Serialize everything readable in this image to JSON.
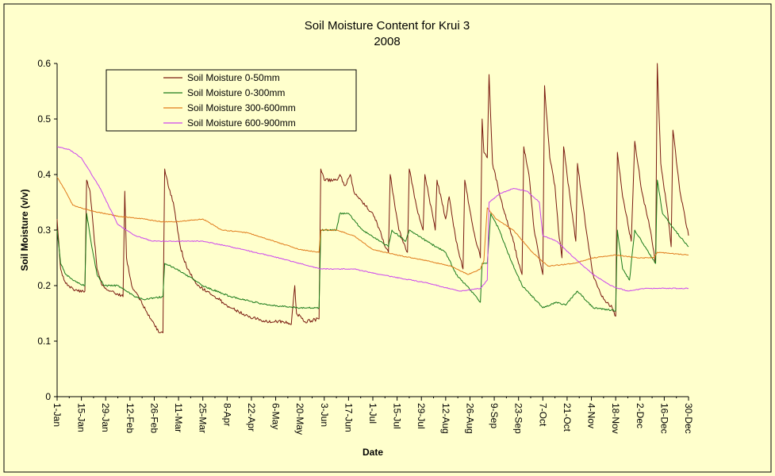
{
  "chart_data": {
    "type": "line",
    "title": "Soil Moisture Content for Krui 3",
    "subtitle": "2008",
    "xlabel": "Date",
    "ylabel": "Soil Moisture (v/v)",
    "ylim": [
      0,
      0.6
    ],
    "yticks": [
      "0",
      "0.1",
      "0.2",
      "0.3",
      "0.4",
      "0.5",
      "0.6"
    ],
    "xticks": [
      "1-Jan",
      "15-Jan",
      "29-Jan",
      "12-Feb",
      "26-Feb",
      "11-Mar",
      "25-Mar",
      "8-Apr",
      "22-Apr",
      "6-May",
      "20-May",
      "3-Jun",
      "17-Jun",
      "1-Jul",
      "15-Jul",
      "29-Jul",
      "12-Aug",
      "26-Aug",
      "9-Sep",
      "23-Sep",
      "7-Oct",
      "21-Oct",
      "4-Nov",
      "18-Nov",
      "2-Dec",
      "16-Dec",
      "30-Dec"
    ],
    "xlim": [
      "2008-01-01",
      "2008-12-30"
    ],
    "grid": false,
    "legend_position": "top-left",
    "colors": {
      "plot_background": "#ffffcc",
      "page_background": "#ffffcc"
    },
    "series": [
      {
        "name": "Soil Moisture 0-50mm",
        "color": "#7a1a10",
        "points": [
          [
            "2008-01-01",
            0.32
          ],
          [
            "2008-01-03",
            0.23
          ],
          [
            "2008-01-05",
            0.21
          ],
          [
            "2008-01-07",
            0.2
          ],
          [
            "2008-01-10",
            0.195
          ],
          [
            "2008-01-13",
            0.19
          ],
          [
            "2008-01-17",
            0.19
          ],
          [
            "2008-01-18",
            0.39
          ],
          [
            "2008-01-20",
            0.37
          ],
          [
            "2008-01-22",
            0.3
          ],
          [
            "2008-01-24",
            0.23
          ],
          [
            "2008-01-27",
            0.2
          ],
          [
            "2008-01-31",
            0.19
          ],
          [
            "2008-02-05",
            0.185
          ],
          [
            "2008-02-08",
            0.18
          ],
          [
            "2008-02-09",
            0.37
          ],
          [
            "2008-02-10",
            0.25
          ],
          [
            "2008-02-13",
            0.2
          ],
          [
            "2008-02-17",
            0.18
          ],
          [
            "2008-02-22",
            0.15
          ],
          [
            "2008-02-26",
            0.13
          ],
          [
            "2008-02-29",
            0.115
          ],
          [
            "2008-03-02",
            0.115
          ],
          [
            "2008-03-03",
            0.41
          ],
          [
            "2008-03-05",
            0.38
          ],
          [
            "2008-03-08",
            0.35
          ],
          [
            "2008-03-12",
            0.27
          ],
          [
            "2008-03-16",
            0.23
          ],
          [
            "2008-03-22",
            0.2
          ],
          [
            "2008-04-01",
            0.18
          ],
          [
            "2008-04-10",
            0.16
          ],
          [
            "2008-04-20",
            0.145
          ],
          [
            "2008-05-01",
            0.135
          ],
          [
            "2008-05-10",
            0.135
          ],
          [
            "2008-05-15",
            0.13
          ],
          [
            "2008-05-17",
            0.2
          ],
          [
            "2008-05-18",
            0.15
          ],
          [
            "2008-05-23",
            0.135
          ],
          [
            "2008-05-31",
            0.14
          ],
          [
            "2008-06-01",
            0.41
          ],
          [
            "2008-06-03",
            0.39
          ],
          [
            "2008-06-10",
            0.39
          ],
          [
            "2008-06-12",
            0.4
          ],
          [
            "2008-06-15",
            0.38
          ],
          [
            "2008-06-18",
            0.4
          ],
          [
            "2008-06-20",
            0.37
          ],
          [
            "2008-06-25",
            0.35
          ],
          [
            "2008-07-01",
            0.33
          ],
          [
            "2008-07-05",
            0.3
          ],
          [
            "2008-07-08",
            0.27
          ],
          [
            "2008-07-10",
            0.26
          ],
          [
            "2008-07-11",
            0.4
          ],
          [
            "2008-07-16",
            0.3
          ],
          [
            "2008-07-21",
            0.26
          ],
          [
            "2008-07-22",
            0.41
          ],
          [
            "2008-07-27",
            0.33
          ],
          [
            "2008-07-30",
            0.3
          ],
          [
            "2008-07-31",
            0.4
          ],
          [
            "2008-08-06",
            0.3
          ],
          [
            "2008-08-07",
            0.39
          ],
          [
            "2008-08-12",
            0.32
          ],
          [
            "2008-08-14",
            0.36
          ],
          [
            "2008-08-18",
            0.28
          ],
          [
            "2008-08-22",
            0.23
          ],
          [
            "2008-08-23",
            0.39
          ],
          [
            "2008-08-28",
            0.3
          ],
          [
            "2008-09-01",
            0.25
          ],
          [
            "2008-09-02",
            0.5
          ],
          [
            "2008-09-03",
            0.44
          ],
          [
            "2008-09-05",
            0.43
          ],
          [
            "2008-09-06",
            0.58
          ],
          [
            "2008-09-08",
            0.42
          ],
          [
            "2008-09-11",
            0.38
          ],
          [
            "2008-09-15",
            0.33
          ],
          [
            "2008-09-20",
            0.28
          ],
          [
            "2008-09-23",
            0.24
          ],
          [
            "2008-09-25",
            0.22
          ],
          [
            "2008-09-26",
            0.45
          ],
          [
            "2008-09-29",
            0.4
          ],
          [
            "2008-10-02",
            0.3
          ],
          [
            "2008-10-05",
            0.25
          ],
          [
            "2008-10-07",
            0.22
          ],
          [
            "2008-10-08",
            0.56
          ],
          [
            "2008-10-11",
            0.43
          ],
          [
            "2008-10-14",
            0.38
          ],
          [
            "2008-10-16",
            0.3
          ],
          [
            "2008-10-18",
            0.25
          ],
          [
            "2008-10-19",
            0.45
          ],
          [
            "2008-10-23",
            0.35
          ],
          [
            "2008-10-26",
            0.28
          ],
          [
            "2008-10-27",
            0.42
          ],
          [
            "2008-11-01",
            0.3
          ],
          [
            "2008-11-05",
            0.22
          ],
          [
            "2008-11-10",
            0.18
          ],
          [
            "2008-11-16",
            0.16
          ],
          [
            "2008-11-18",
            0.145
          ],
          [
            "2008-11-19",
            0.44
          ],
          [
            "2008-11-22",
            0.36
          ],
          [
            "2008-11-27",
            0.28
          ],
          [
            "2008-11-29",
            0.46
          ],
          [
            "2008-12-03",
            0.37
          ],
          [
            "2008-12-08",
            0.3
          ],
          [
            "2008-12-11",
            0.24
          ],
          [
            "2008-12-12",
            0.6
          ],
          [
            "2008-12-14",
            0.42
          ],
          [
            "2008-12-18",
            0.33
          ],
          [
            "2008-12-20",
            0.27
          ],
          [
            "2008-12-21",
            0.48
          ],
          [
            "2008-12-25",
            0.37
          ],
          [
            "2008-12-30",
            0.29
          ]
        ]
      },
      {
        "name": "Soil Moisture 0-300mm",
        "color": "#1a7a1a",
        "points": [
          [
            "2008-01-01",
            0.3
          ],
          [
            "2008-01-03",
            0.24
          ],
          [
            "2008-01-06",
            0.22
          ],
          [
            "2008-01-10",
            0.21
          ],
          [
            "2008-01-17",
            0.2
          ],
          [
            "2008-01-18",
            0.33
          ],
          [
            "2008-01-21",
            0.27
          ],
          [
            "2008-01-24",
            0.22
          ],
          [
            "2008-01-28",
            0.2
          ],
          [
            "2008-02-05",
            0.2
          ],
          [
            "2008-02-10",
            0.19
          ],
          [
            "2008-02-15",
            0.18
          ],
          [
            "2008-02-20",
            0.175
          ],
          [
            "2008-03-02",
            0.18
          ],
          [
            "2008-03-03",
            0.24
          ],
          [
            "2008-03-10",
            0.23
          ],
          [
            "2008-03-15",
            0.22
          ],
          [
            "2008-03-25",
            0.2
          ],
          [
            "2008-04-10",
            0.18
          ],
          [
            "2008-05-01",
            0.165
          ],
          [
            "2008-05-20",
            0.16
          ],
          [
            "2008-05-31",
            0.16
          ],
          [
            "2008-06-01",
            0.3
          ],
          [
            "2008-06-10",
            0.3
          ],
          [
            "2008-06-12",
            0.33
          ],
          [
            "2008-06-17",
            0.33
          ],
          [
            "2008-06-25",
            0.3
          ],
          [
            "2008-07-05",
            0.28
          ],
          [
            "2008-07-10",
            0.27
          ],
          [
            "2008-07-12",
            0.3
          ],
          [
            "2008-07-20",
            0.28
          ],
          [
            "2008-07-22",
            0.3
          ],
          [
            "2008-08-01",
            0.28
          ],
          [
            "2008-08-12",
            0.26
          ],
          [
            "2008-08-18",
            0.22
          ],
          [
            "2008-08-24",
            0.2
          ],
          [
            "2008-09-01",
            0.17
          ],
          [
            "2008-09-02",
            0.24
          ],
          [
            "2008-09-05",
            0.24
          ],
          [
            "2008-09-07",
            0.33
          ],
          [
            "2008-09-12",
            0.3
          ],
          [
            "2008-09-18",
            0.25
          ],
          [
            "2008-09-25",
            0.2
          ],
          [
            "2008-10-07",
            0.16
          ],
          [
            "2008-10-15",
            0.17
          ],
          [
            "2008-10-20",
            0.165
          ],
          [
            "2008-10-27",
            0.19
          ],
          [
            "2008-11-05",
            0.16
          ],
          [
            "2008-11-18",
            0.155
          ],
          [
            "2008-11-19",
            0.3
          ],
          [
            "2008-11-22",
            0.23
          ],
          [
            "2008-11-26",
            0.21
          ],
          [
            "2008-11-29",
            0.3
          ],
          [
            "2008-12-05",
            0.27
          ],
          [
            "2008-12-11",
            0.24
          ],
          [
            "2008-12-12",
            0.39
          ],
          [
            "2008-12-15",
            0.33
          ],
          [
            "2008-12-22",
            0.3
          ],
          [
            "2008-12-30",
            0.27
          ]
        ]
      },
      {
        "name": "Soil Moisture 300-600mm",
        "color": "#e07a1a",
        "points": [
          [
            "2008-01-01",
            0.395
          ],
          [
            "2008-01-05",
            0.375
          ],
          [
            "2008-01-10",
            0.345
          ],
          [
            "2008-01-20",
            0.335
          ],
          [
            "2008-02-05",
            0.325
          ],
          [
            "2008-02-20",
            0.32
          ],
          [
            "2008-03-01",
            0.315
          ],
          [
            "2008-03-10",
            0.315
          ],
          [
            "2008-03-25",
            0.32
          ],
          [
            "2008-04-05",
            0.3
          ],
          [
            "2008-04-20",
            0.295
          ],
          [
            "2008-05-05",
            0.28
          ],
          [
            "2008-05-20",
            0.265
          ],
          [
            "2008-05-31",
            0.26
          ],
          [
            "2008-06-01",
            0.3
          ],
          [
            "2008-06-10",
            0.3
          ],
          [
            "2008-06-20",
            0.29
          ],
          [
            "2008-07-01",
            0.265
          ],
          [
            "2008-07-15",
            0.255
          ],
          [
            "2008-08-01",
            0.245
          ],
          [
            "2008-08-15",
            0.235
          ],
          [
            "2008-08-25",
            0.22
          ],
          [
            "2008-09-01",
            0.23
          ],
          [
            "2008-09-03",
            0.245
          ],
          [
            "2008-09-05",
            0.34
          ],
          [
            "2008-09-10",
            0.32
          ],
          [
            "2008-09-20",
            0.3
          ],
          [
            "2008-10-01",
            0.26
          ],
          [
            "2008-10-10",
            0.235
          ],
          [
            "2008-10-25",
            0.24
          ],
          [
            "2008-11-05",
            0.25
          ],
          [
            "2008-11-18",
            0.255
          ],
          [
            "2008-12-01",
            0.25
          ],
          [
            "2008-12-10",
            0.25
          ],
          [
            "2008-12-12",
            0.26
          ],
          [
            "2008-12-30",
            0.255
          ]
        ]
      },
      {
        "name": "Soil Moisture 600-900mm",
        "color": "#cc44ee",
        "points": [
          [
            "2008-01-01",
            0.45
          ],
          [
            "2008-01-08",
            0.445
          ],
          [
            "2008-01-15",
            0.43
          ],
          [
            "2008-01-25",
            0.38
          ],
          [
            "2008-02-05",
            0.31
          ],
          [
            "2008-02-15",
            0.29
          ],
          [
            "2008-02-25",
            0.28
          ],
          [
            "2008-03-10",
            0.28
          ],
          [
            "2008-03-25",
            0.28
          ],
          [
            "2008-04-10",
            0.27
          ],
          [
            "2008-05-01",
            0.255
          ],
          [
            "2008-05-20",
            0.24
          ],
          [
            "2008-06-01",
            0.23
          ],
          [
            "2008-06-20",
            0.23
          ],
          [
            "2008-07-05",
            0.22
          ],
          [
            "2008-08-01",
            0.205
          ],
          [
            "2008-08-20",
            0.19
          ],
          [
            "2008-09-01",
            0.195
          ],
          [
            "2008-09-05",
            0.21
          ],
          [
            "2008-09-06",
            0.35
          ],
          [
            "2008-09-12",
            0.365
          ],
          [
            "2008-09-20",
            0.375
          ],
          [
            "2008-09-28",
            0.37
          ],
          [
            "2008-10-05",
            0.35
          ],
          [
            "2008-10-07",
            0.29
          ],
          [
            "2008-10-15",
            0.28
          ],
          [
            "2008-10-25",
            0.25
          ],
          [
            "2008-11-05",
            0.22
          ],
          [
            "2008-11-15",
            0.2
          ],
          [
            "2008-11-25",
            0.19
          ],
          [
            "2008-12-05",
            0.195
          ],
          [
            "2008-12-30",
            0.195
          ]
        ]
      }
    ]
  }
}
